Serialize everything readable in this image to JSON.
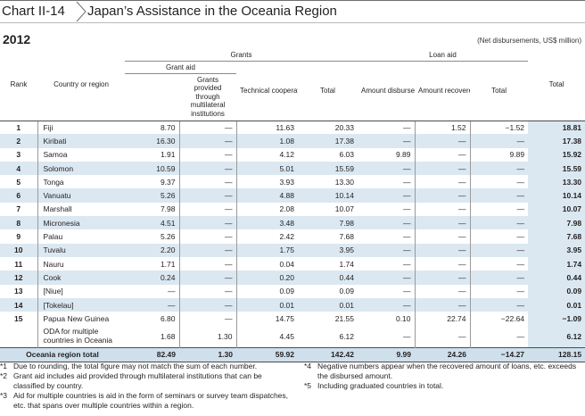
{
  "header": {
    "chart_no": "Chart II-14",
    "title": "Japan’s Assistance in the Oceania Region"
  },
  "year": "2012",
  "unit_note": "(Net disbursements, US$ million)",
  "columns": {
    "rank": "Rank",
    "country": "Country or region",
    "grants": "Grants",
    "grant_aid": "Grant aid",
    "grant_multilateral": "Grants provided through multilateral institutions",
    "technical": "Technical cooperation",
    "grants_total": "Total",
    "loan_aid": "Loan aid",
    "amount_disbursed": "Amount disbursed",
    "amount_recovered": "Amount recovered",
    "loan_total": "Total",
    "total": "Total"
  },
  "rows": [
    {
      "rank": "1",
      "country": "Fiji",
      "grant_aid": "8.70",
      "multi": "—",
      "tech": "11.63",
      "gtotal": "20.33",
      "disbursed": "—",
      "recovered": "1.52",
      "ltotal": "−1.52",
      "total": "18.81"
    },
    {
      "rank": "2",
      "country": "Kiribati",
      "grant_aid": "16.30",
      "multi": "—",
      "tech": "1.08",
      "gtotal": "17.38",
      "disbursed": "—",
      "recovered": "—",
      "ltotal": "—",
      "total": "17.38"
    },
    {
      "rank": "3",
      "country": "Samoa",
      "grant_aid": "1.91",
      "multi": "—",
      "tech": "4.12",
      "gtotal": "6.03",
      "disbursed": "9.89",
      "recovered": "—",
      "ltotal": "9.89",
      "total": "15.92"
    },
    {
      "rank": "4",
      "country": "Solomon",
      "grant_aid": "10.59",
      "multi": "—",
      "tech": "5.01",
      "gtotal": "15.59",
      "disbursed": "—",
      "recovered": "—",
      "ltotal": "—",
      "total": "15.59"
    },
    {
      "rank": "5",
      "country": "Tonga",
      "grant_aid": "9.37",
      "multi": "—",
      "tech": "3.93",
      "gtotal": "13.30",
      "disbursed": "—",
      "recovered": "—",
      "ltotal": "—",
      "total": "13.30"
    },
    {
      "rank": "6",
      "country": "Vanuatu",
      "grant_aid": "5.26",
      "multi": "—",
      "tech": "4.88",
      "gtotal": "10.14",
      "disbursed": "—",
      "recovered": "—",
      "ltotal": "—",
      "total": "10.14"
    },
    {
      "rank": "7",
      "country": "Marshall",
      "grant_aid": "7.98",
      "multi": "—",
      "tech": "2.08",
      "gtotal": "10.07",
      "disbursed": "—",
      "recovered": "—",
      "ltotal": "—",
      "total": "10.07"
    },
    {
      "rank": "8",
      "country": "Micronesia",
      "grant_aid": "4.51",
      "multi": "—",
      "tech": "3.48",
      "gtotal": "7.98",
      "disbursed": "—",
      "recovered": "—",
      "ltotal": "—",
      "total": "7.98"
    },
    {
      "rank": "9",
      "country": "Palau",
      "grant_aid": "5.26",
      "multi": "—",
      "tech": "2.42",
      "gtotal": "7.68",
      "disbursed": "—",
      "recovered": "—",
      "ltotal": "—",
      "total": "7.68"
    },
    {
      "rank": "10",
      "country": "Tuvalu",
      "grant_aid": "2.20",
      "multi": "—",
      "tech": "1.75",
      "gtotal": "3.95",
      "disbursed": "—",
      "recovered": "—",
      "ltotal": "—",
      "total": "3.95"
    },
    {
      "rank": "11",
      "country": "Nauru",
      "grant_aid": "1.71",
      "multi": "—",
      "tech": "0.04",
      "gtotal": "1.74",
      "disbursed": "—",
      "recovered": "—",
      "ltotal": "—",
      "total": "1.74"
    },
    {
      "rank": "12",
      "country": "Cook",
      "grant_aid": "0.24",
      "multi": "—",
      "tech": "0.20",
      "gtotal": "0.44",
      "disbursed": "—",
      "recovered": "—",
      "ltotal": "—",
      "total": "0.44"
    },
    {
      "rank": "13",
      "country": "[Niue]",
      "grant_aid": "—",
      "multi": "—",
      "tech": "0.09",
      "gtotal": "0.09",
      "disbursed": "—",
      "recovered": "—",
      "ltotal": "—",
      "total": "0.09"
    },
    {
      "rank": "14",
      "country": "[Tokelau]",
      "grant_aid": "—",
      "multi": "—",
      "tech": "0.01",
      "gtotal": "0.01",
      "disbursed": "—",
      "recovered": "—",
      "ltotal": "—",
      "total": "0.01"
    },
    {
      "rank": "15",
      "country": "Papua New Guinea",
      "grant_aid": "6.80",
      "multi": "—",
      "tech": "14.75",
      "gtotal": "21.55",
      "disbursed": "0.10",
      "recovered": "22.74",
      "ltotal": "−22.64",
      "total": "−1.09"
    }
  ],
  "multi_row": {
    "rank": "",
    "country": "ODA for multiple countries in Oceania",
    "grant_aid": "1.68",
    "multi": "1.30",
    "tech": "4.45",
    "gtotal": "6.12",
    "disbursed": "—",
    "recovered": "—",
    "ltotal": "—",
    "total": "6.12"
  },
  "total_row": {
    "label": "Oceania region total",
    "grant_aid": "82.49",
    "multi": "1.30",
    "tech": "59.92",
    "gtotal": "142.42",
    "disbursed": "9.99",
    "recovered": "24.26",
    "ltotal": "−14.27",
    "total": "128.15"
  },
  "notes": {
    "n1": {
      "mark": "*1",
      "text": "Due to rounding, the total figure may not match the sum of each number."
    },
    "n2": {
      "mark": "*2",
      "text": "Grant aid includes aid provided through multilateral institutions that can be classified by country."
    },
    "n3": {
      "mark": "*3",
      "text": "Aid for multiple countries is aid in the form of seminars or survey team dispatches, etc. that spans over multiple countries within a region."
    },
    "n4": {
      "mark": "*4",
      "text": "Negative numbers appear when the recovered amount of loans, etc. exceeds the disbursed amount."
    },
    "n5": {
      "mark": "*5",
      "text": "Including graduated countries in total."
    }
  },
  "colors": {
    "row_highlight": "#dbe8f1",
    "border": "#4c4c4c"
  }
}
